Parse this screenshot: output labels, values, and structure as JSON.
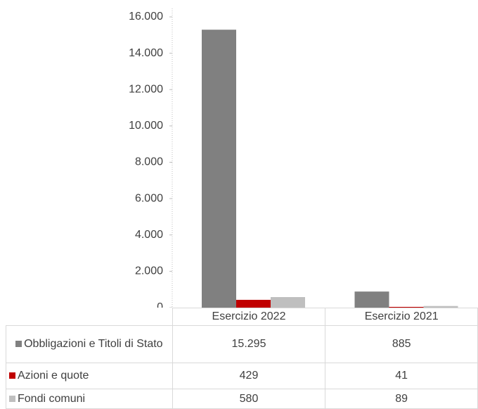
{
  "chart_data": {
    "type": "bar",
    "categories": [
      "Esercizio 2022",
      "Esercizio 2021"
    ],
    "series": [
      {
        "name": "Obbligazioni e Titoli di Stato",
        "color": "#808080",
        "values": [
          15295,
          885
        ],
        "value_labels": [
          "15.295",
          "885"
        ]
      },
      {
        "name": "Azioni e quote",
        "color": "#c00000",
        "values": [
          429,
          41
        ]
      },
      {
        "name": "Fondi comuni",
        "color": "#bfbfbf",
        "values": [
          580,
          89
        ]
      }
    ],
    "ylim": [
      0,
      16000
    ],
    "yticks": [
      0,
      {
        "value": 2000,
        "label": "2.000"
      },
      {
        "value": 4000,
        "label": "4.000"
      },
      {
        "value": 6000,
        "label": "6.000"
      },
      {
        "value": 8000,
        "label": "8.000"
      },
      {
        "value": 10000,
        "label": "10.000"
      },
      {
        "value": 12000,
        "label": "12.000"
      },
      {
        "value": 14000,
        "label": "14.000"
      },
      {
        "value": 16000,
        "label": "16.000"
      }
    ],
    "grid": false
  }
}
